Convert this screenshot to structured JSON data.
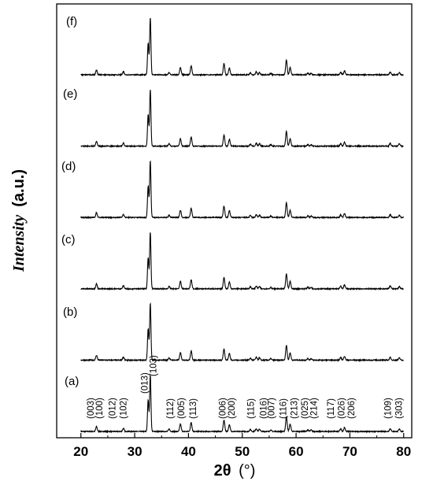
{
  "chart_data": {
    "type": "line",
    "xlabel": {
      "symbol": "2θ",
      "unit": "(°)"
    },
    "ylabel": {
      "main": "Intensity",
      "unit": "(a.u.)"
    },
    "xlim": [
      15.5,
      81.5
    ],
    "xticks": [
      20,
      30,
      40,
      50,
      60,
      70,
      80
    ],
    "grid": false,
    "baseline_noise": 0.008,
    "series": [
      {
        "label": "(a)",
        "offset": 0
      },
      {
        "label": "(b)",
        "offset": 1
      },
      {
        "label": "(c)",
        "offset": 2
      },
      {
        "label": "(d)",
        "offset": 3
      },
      {
        "label": "(e)",
        "offset": 4
      },
      {
        "label": "(f)",
        "offset": 5
      }
    ],
    "peaks": [
      {
        "x": 22.9,
        "h": 0.085
      },
      {
        "x": 27.9,
        "h": 0.055
      },
      {
        "x": 32.5,
        "h": 0.55
      },
      {
        "x": 32.9,
        "h": 1.0
      },
      {
        "x": 36.4,
        "h": 0.04
      },
      {
        "x": 38.5,
        "h": 0.13
      },
      {
        "x": 40.5,
        "h": 0.16
      },
      {
        "x": 46.6,
        "h": 0.2
      },
      {
        "x": 47.6,
        "h": 0.12
      },
      {
        "x": 51.5,
        "h": 0.035
      },
      {
        "x": 52.6,
        "h": 0.05
      },
      {
        "x": 53.2,
        "h": 0.04
      },
      {
        "x": 55.3,
        "h": 0.025
      },
      {
        "x": 58.2,
        "h": 0.26
      },
      {
        "x": 58.9,
        "h": 0.13
      },
      {
        "x": 62.2,
        "h": 0.03
      },
      {
        "x": 62.8,
        "h": 0.025
      },
      {
        "x": 68.3,
        "h": 0.045
      },
      {
        "x": 69.0,
        "h": 0.07
      },
      {
        "x": 77.5,
        "h": 0.05
      },
      {
        "x": 79.2,
        "h": 0.04
      }
    ],
    "hkl_annotations": [
      {
        "text": "(003)",
        "x": 21.8
      },
      {
        "text": "(100)",
        "x": 23.4
      },
      {
        "text": "(012)",
        "x": 25.8
      },
      {
        "text": "(102)",
        "x": 27.9
      },
      {
        "text": "(013)",
        "x": 31.8
      },
      {
        "text": "(103)",
        "x": 33.4
      },
      {
        "text": "(112)",
        "x": 36.6
      },
      {
        "text": "(005)",
        "x": 38.6
      },
      {
        "text": "(113)",
        "x": 40.8
      },
      {
        "text": "(006)",
        "x": 46.3
      },
      {
        "text": "(200)",
        "x": 48.0
      },
      {
        "text": "(115)",
        "x": 51.6
      },
      {
        "text": "(016)",
        "x": 53.9
      },
      {
        "text": "(007)",
        "x": 55.4
      },
      {
        "text": "(116)",
        "x": 57.6
      },
      {
        "text": "(213)",
        "x": 59.6
      },
      {
        "text": "(025)",
        "x": 61.6
      },
      {
        "text": "(214)",
        "x": 63.3
      },
      {
        "text": "(117)",
        "x": 66.4
      },
      {
        "text": "(026)",
        "x": 68.4
      },
      {
        "text": "(206)",
        "x": 70.2
      },
      {
        "text": "(109)",
        "x": 77.0
      },
      {
        "text": "(303)",
        "x": 79.1
      }
    ]
  }
}
